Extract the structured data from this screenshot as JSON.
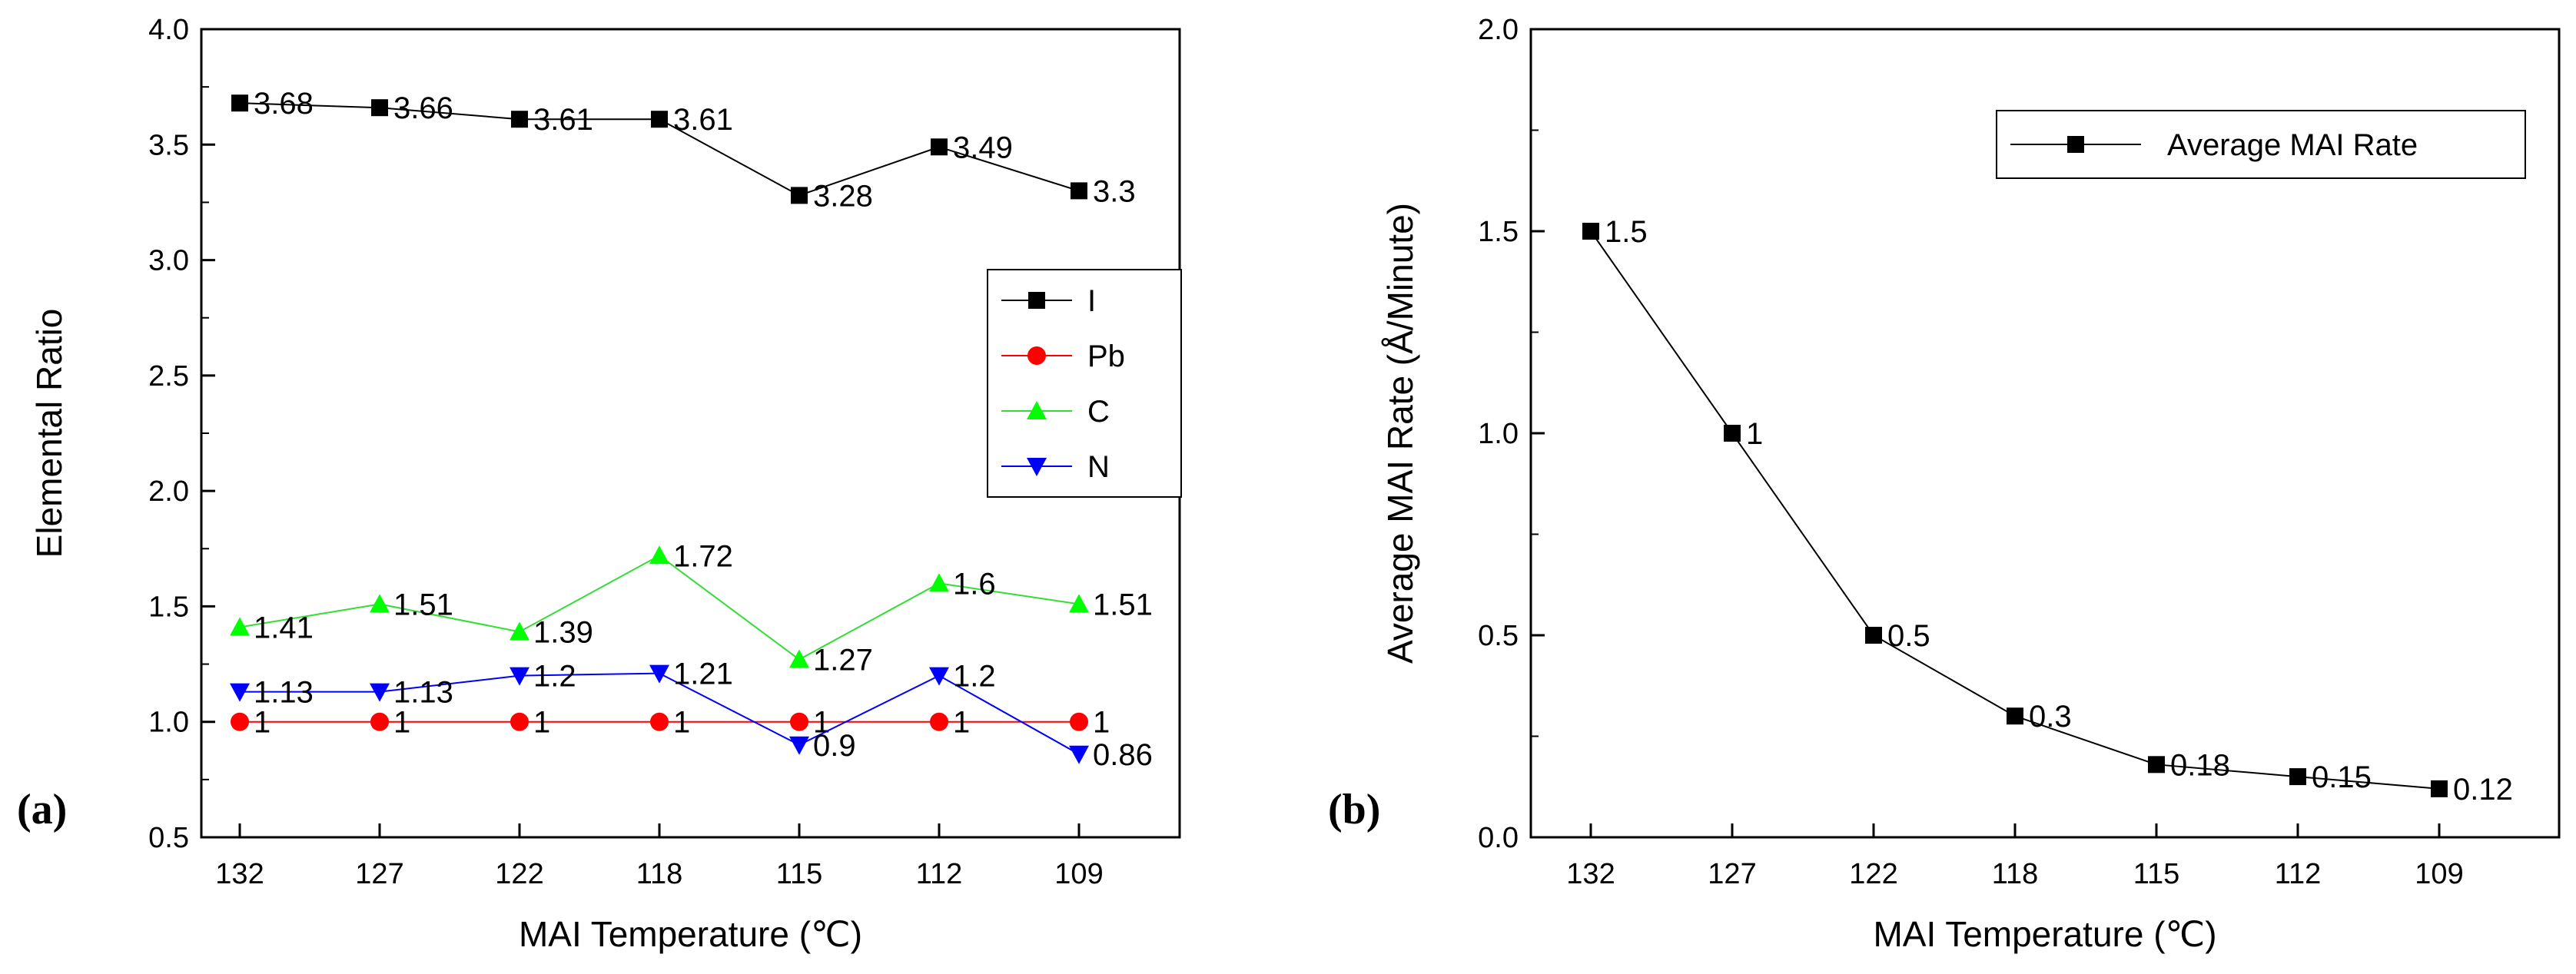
{
  "chart_data": [
    {
      "type": "line",
      "panel_label": "(a)",
      "categories": [
        "132",
        "127",
        "122",
        "118",
        "115",
        "112",
        "109"
      ],
      "xlabel": "MAI Temperature (℃)",
      "ylabel": "Elemental Ratio",
      "ylim": [
        0.5,
        4.0
      ],
      "yticks": [
        "0.5",
        "1.0",
        "1.5",
        "2.0",
        "2.5",
        "3.0",
        "3.5",
        "4.0"
      ],
      "legend_position": "center-right",
      "series": [
        {
          "name": "I",
          "marker": "square",
          "color": "#000000",
          "values": [
            3.68,
            3.66,
            3.61,
            3.61,
            3.28,
            3.49,
            3.3
          ],
          "labels": [
            "3.68",
            "3.66",
            "3.61",
            "3.61",
            "3.28",
            "3.49",
            "3.3"
          ]
        },
        {
          "name": "Pb",
          "marker": "circle",
          "color": "#ff0000",
          "values": [
            1,
            1,
            1,
            1,
            1,
            1,
            1
          ],
          "labels": [
            "1",
            "1",
            "1",
            "1",
            "1",
            "1",
            "1"
          ]
        },
        {
          "name": "C",
          "marker": "triangle-up",
          "color": "#00ff00",
          "values": [
            1.41,
            1.51,
            1.39,
            1.72,
            1.27,
            1.6,
            1.51
          ],
          "labels": [
            "1.41",
            "1.51",
            "1.39",
            "1.72",
            "1.27",
            "1.6",
            "1.51"
          ]
        },
        {
          "name": "N",
          "marker": "triangle-down",
          "color": "#0000ff",
          "values": [
            1.13,
            1.13,
            1.2,
            1.21,
            0.9,
            1.2,
            0.86
          ],
          "labels": [
            "1.13",
            "1.13",
            "1.2",
            "1.21",
            "0.9",
            "1.2",
            "0.86"
          ]
        }
      ]
    },
    {
      "type": "line",
      "panel_label": "(b)",
      "categories": [
        "132",
        "127",
        "122",
        "118",
        "115",
        "112",
        "109"
      ],
      "xlabel": "MAI Temperature (℃)",
      "ylabel": "Average MAI Rate (Å/Minute)",
      "ylim": [
        0.0,
        2.0
      ],
      "yticks": [
        "0.0",
        "0.5",
        "1.0",
        "1.5",
        "2.0"
      ],
      "legend_position": "top-right",
      "series": [
        {
          "name": "Average MAI Rate",
          "marker": "square",
          "color": "#000000",
          "values": [
            1.5,
            1,
            0.5,
            0.3,
            0.18,
            0.15,
            0.12
          ],
          "labels": [
            "1.5",
            "1",
            "0.5",
            "0.3",
            "0.18",
            "0.15",
            "0.12"
          ]
        }
      ]
    }
  ]
}
